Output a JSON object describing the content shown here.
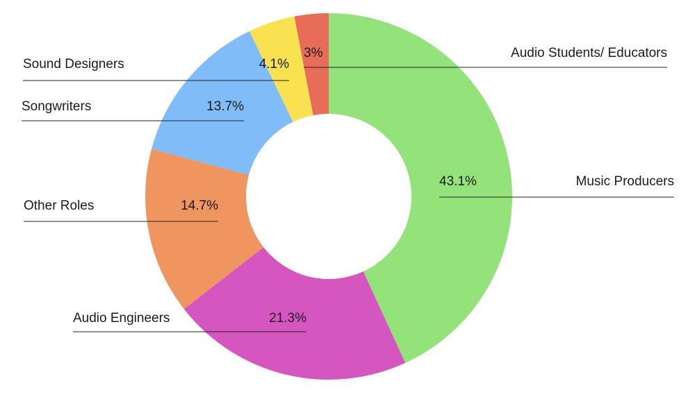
{
  "chart_data": {
    "type": "donut",
    "categories": [
      "Music Producers",
      "Audio Engineers",
      "Other Roles",
      "Songwriters",
      "Sound Designers",
      "Audio Students/ Educators"
    ],
    "values": [
      43.1,
      21.3,
      14.7,
      13.7,
      4.1,
      3
    ],
    "value_labels": [
      "43.1%",
      "21.3%",
      "14.7%",
      "13.7%",
      "4.1%",
      "3%"
    ],
    "colors": [
      "#94e27a",
      "#d656c0",
      "#ef9560",
      "#80bcf7",
      "#f9e24f",
      "#e86d59"
    ]
  }
}
